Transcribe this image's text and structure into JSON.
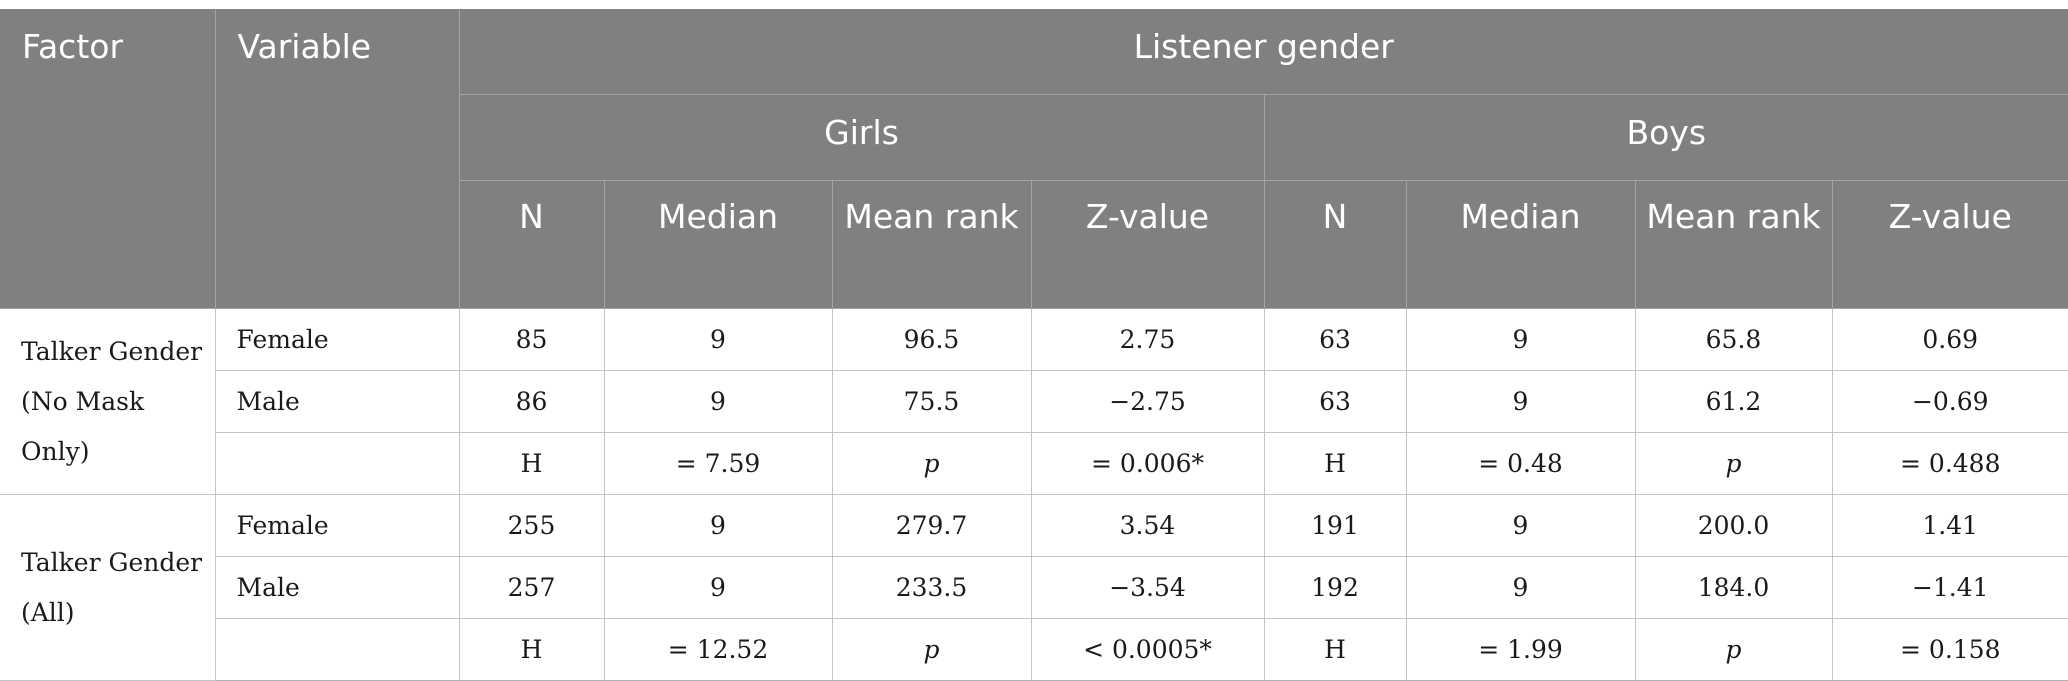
{
  "header": {
    "factor": "Factor",
    "variable": "Variable",
    "listener_gender": "Listener gender",
    "girls": "Girls",
    "boys": "Boys",
    "n": "N",
    "median": "Median",
    "mean_rank": "Mean rank",
    "z_value": "Z-value"
  },
  "groups": [
    {
      "factor": "Talker Gender (No Mask Only)",
      "rows": [
        {
          "variable": "Female",
          "girls": {
            "n": "85",
            "median": "9",
            "mean_rank": "96.5",
            "z": "2.75"
          },
          "boys": {
            "n": "63",
            "median": "9",
            "mean_rank": "65.8",
            "z": "0.69"
          }
        },
        {
          "variable": "Male",
          "girls": {
            "n": "86",
            "median": "9",
            "mean_rank": "75.5",
            "z": "−2.75"
          },
          "boys": {
            "n": "63",
            "median": "9",
            "mean_rank": "61.2",
            "z": "−0.69"
          }
        },
        {
          "variable": "",
          "girls": {
            "n": "H",
            "median": "= 7.59",
            "mean_rank": "p",
            "z": "= 0.006*"
          },
          "boys": {
            "n": "H",
            "median": "= 0.48",
            "mean_rank": "p",
            "z": "= 0.488"
          }
        }
      ]
    },
    {
      "factor": "Talker Gender (All)",
      "rows": [
        {
          "variable": "Female",
          "girls": {
            "n": "255",
            "median": "9",
            "mean_rank": "279.7",
            "z": "3.54"
          },
          "boys": {
            "n": "191",
            "median": "9",
            "mean_rank": "200.0",
            "z": "1.41"
          }
        },
        {
          "variable": "Male",
          "girls": {
            "n": "257",
            "median": "9",
            "mean_rank": "233.5",
            "z": "−3.54"
          },
          "boys": {
            "n": "192",
            "median": "9",
            "mean_rank": "184.0",
            "z": "−1.41"
          }
        },
        {
          "variable": "",
          "girls": {
            "n": "H",
            "median": "= 12.52",
            "mean_rank": "p",
            "z": "< 0.0005*"
          },
          "boys": {
            "n": "H",
            "median": "= 1.99",
            "mean_rank": "p",
            "z": "= 0.158"
          }
        }
      ]
    }
  ]
}
